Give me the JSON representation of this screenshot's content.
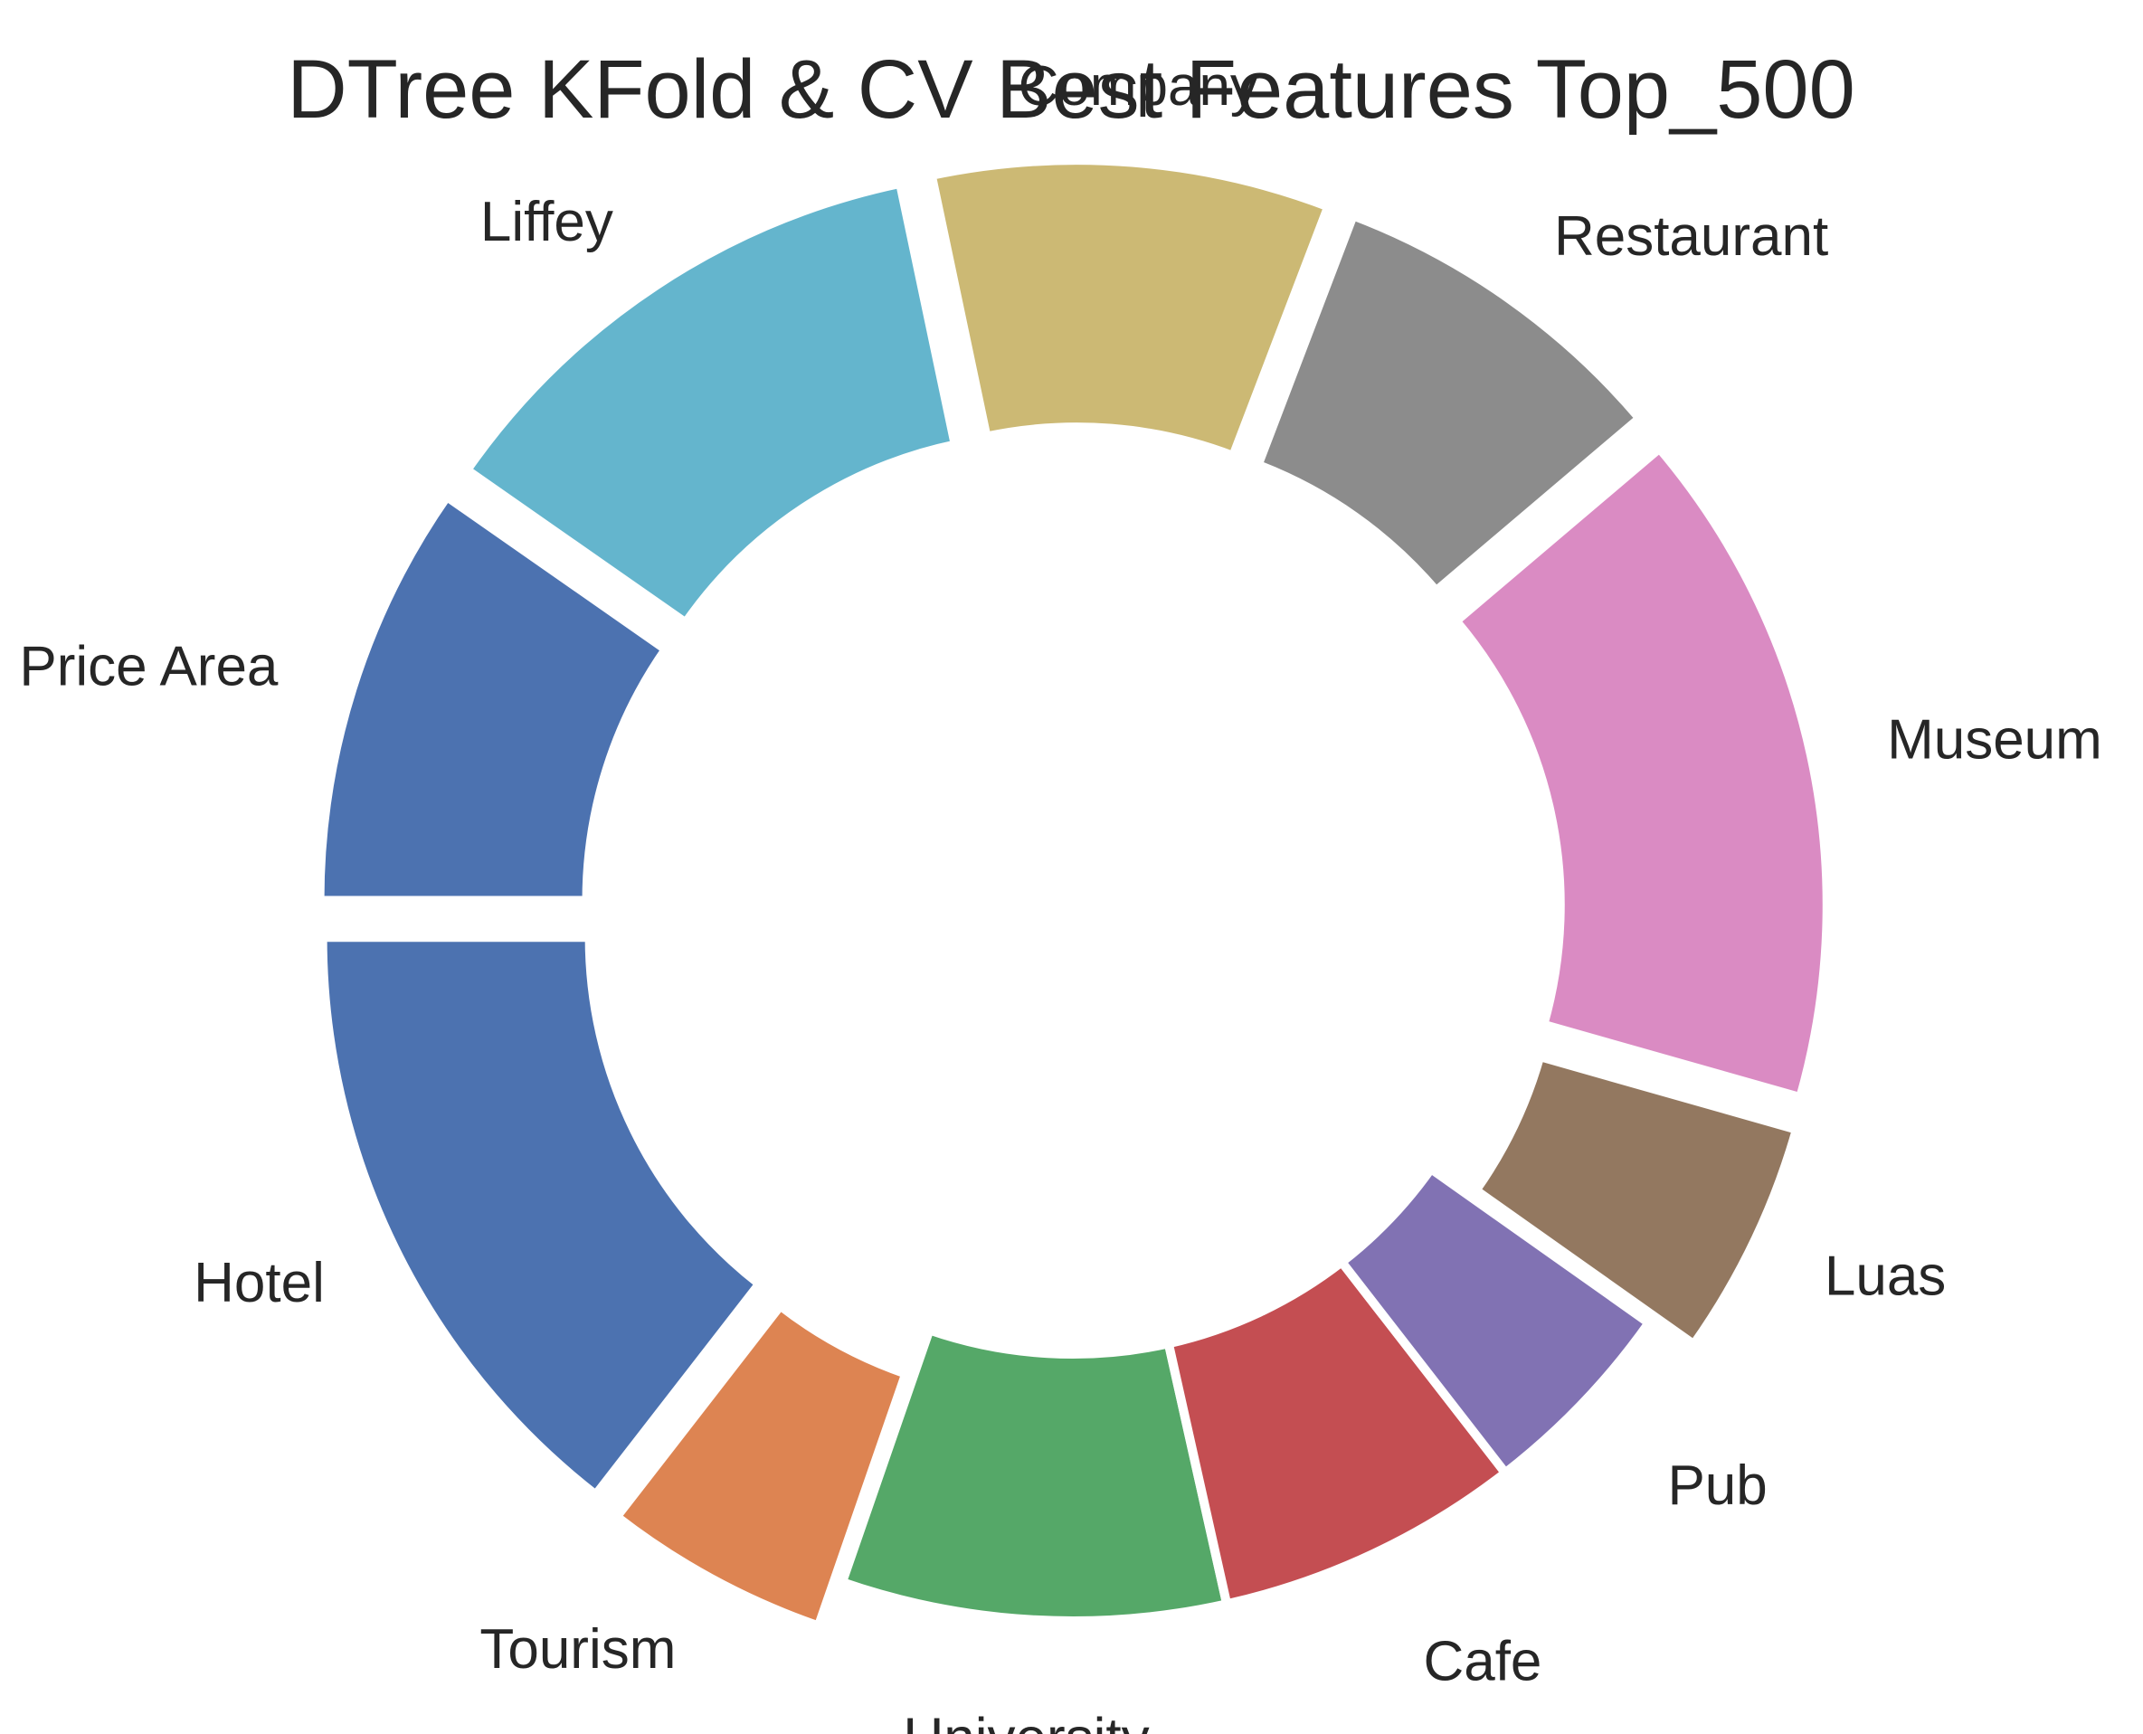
{
  "chart_data": {
    "type": "pie",
    "subtype": "donut",
    "title": "DTree KFold & CV Best Features Top_500",
    "start_angle_deg": 180,
    "direction": "counterclockwise",
    "slices": [
      {
        "label": "Hotel",
        "value": 14.5,
        "color": "#4c72b0",
        "exploded": true
      },
      {
        "label": "Tourism",
        "value": 5.2,
        "color": "#dd8452",
        "exploded": true
      },
      {
        "label": "University",
        "value": 8.8,
        "color": "#55a868",
        "exploded": false
      },
      {
        "label": "Cafe",
        "value": 7.0,
        "color": "#c44e52",
        "exploded": false
      },
      {
        "label": "Pub",
        "value": 4.7,
        "color": "#8172b3",
        "exploded": false
      },
      {
        "label": "Luas",
        "value": 5.4,
        "color": "#937860",
        "exploded": true
      },
      {
        "label": "Museum",
        "value": 15.6,
        "color": "#da8bc3",
        "exploded": true
      },
      {
        "label": "Restaurant",
        "value": 8.0,
        "color": "#8c8c8c",
        "exploded": true
      },
      {
        "label": "Company",
        "value": 9.1,
        "color": "#ccb974",
        "exploded": true
      },
      {
        "label": "Liffey",
        "value": 12.0,
        "color": "#64b5cd",
        "exploded": true
      },
      {
        "label": "Price Area",
        "value": 9.7,
        "color": "#4c72b0",
        "exploded": true
      }
    ]
  }
}
